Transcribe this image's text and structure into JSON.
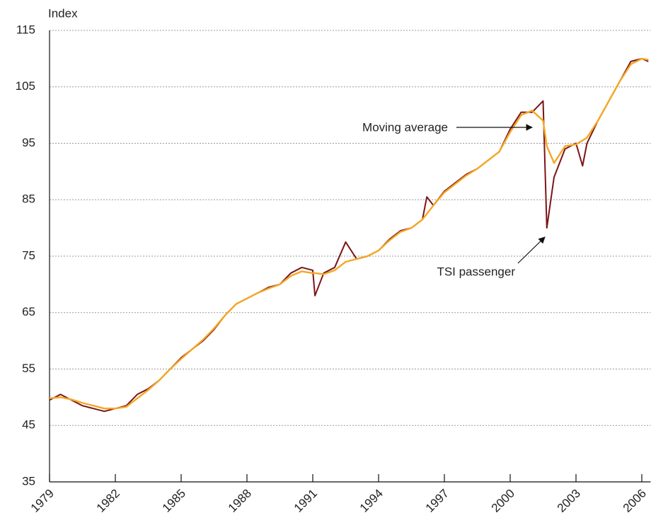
{
  "chart_data": {
    "type": "line",
    "y_label": "Index",
    "x": [
      1979,
      1979.5,
      1980,
      1980.5,
      1981,
      1981.5,
      1982,
      1982.5,
      1983,
      1983.5,
      1984,
      1984.5,
      1985,
      1985.5,
      1986,
      1986.5,
      1987,
      1987.5,
      1988,
      1988.5,
      1989,
      1989.5,
      1990,
      1990.5,
      1991,
      1991.1,
      1991.5,
      1992,
      1992.5,
      1993,
      1993.5,
      1994,
      1994.5,
      1995,
      1995.5,
      1996,
      1996.2,
      1996.5,
      1997,
      1997.5,
      1998,
      1998.5,
      1999,
      1999.5,
      2000,
      2000.5,
      2001,
      2001.5,
      2001.67,
      2002,
      2002.5,
      2003,
      2003.3,
      2003.5,
      2004,
      2004.5,
      2005,
      2005.5,
      2006,
      2006.3
    ],
    "series": [
      {
        "name": "TSI passenger",
        "color": "#7b1416",
        "values": [
          49.5,
          50.5,
          49.5,
          48.5,
          48,
          47.5,
          48,
          48.5,
          50.5,
          51.5,
          53,
          55,
          57,
          58.5,
          60,
          62,
          64.5,
          66.5,
          67.5,
          68.5,
          69.5,
          70,
          72,
          73,
          72.5,
          68,
          72,
          73,
          77.5,
          74.5,
          75,
          76,
          78,
          79.5,
          80,
          81.5,
          85.5,
          84,
          86.5,
          88,
          89.5,
          90.5,
          92,
          93.5,
          97.5,
          100.5,
          100.5,
          102.5,
          80,
          89,
          94,
          95,
          91,
          95,
          99,
          102.5,
          106,
          109.5,
          110,
          109.5
        ]
      },
      {
        "name": "Moving average",
        "color": "#f5a623",
        "values": [
          49.8,
          50,
          49.6,
          49,
          48.5,
          48,
          48,
          48.3,
          49.8,
          51.3,
          53,
          55,
          56.8,
          58.5,
          60.2,
          62.2,
          64.5,
          66.5,
          67.5,
          68.5,
          69.3,
          70,
          71.5,
          72.3,
          72,
          72,
          71.8,
          72.5,
          74,
          74.5,
          75,
          76,
          77.8,
          79.3,
          80,
          81.5,
          82.5,
          84,
          86.3,
          87.8,
          89.3,
          90.5,
          92,
          93.5,
          97,
          100,
          100.8,
          99,
          94.5,
          91.5,
          94.5,
          94.8,
          95.5,
          96,
          99,
          102.5,
          106,
          109,
          110,
          109.8
        ]
      }
    ],
    "annotations": [
      "Moving average",
      "TSI passenger"
    ],
    "xlim": [
      1979,
      2006.4
    ],
    "xticks": [
      1979,
      1982,
      1985,
      1988,
      1991,
      1994,
      1997,
      2000,
      2003,
      2006
    ],
    "ylim": [
      35,
      115
    ],
    "yticks": [
      35,
      45,
      55,
      65,
      75,
      85,
      95,
      105,
      115
    ],
    "grid": true
  }
}
